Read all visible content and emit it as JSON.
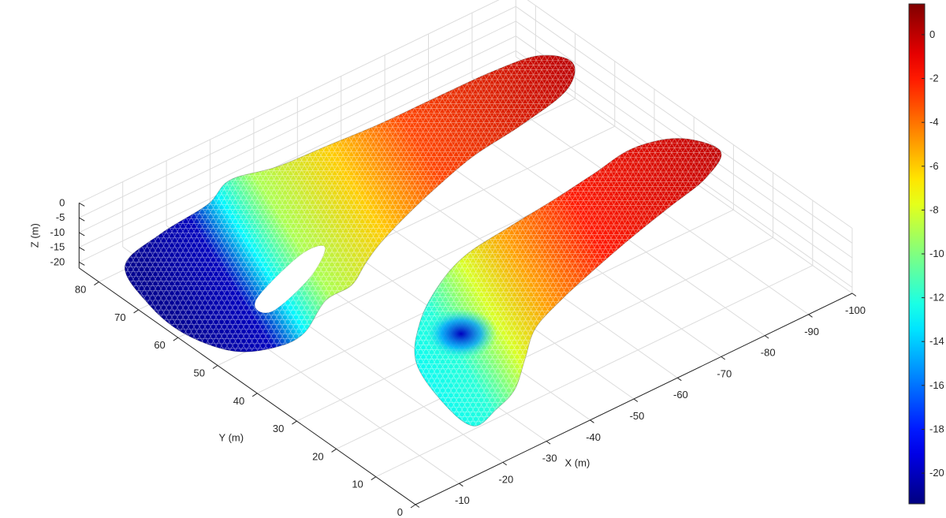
{
  "chart_data": {
    "type": "surface",
    "plot3d": true,
    "colormap": "jet",
    "grid": true,
    "xlabel": "X (m)",
    "ylabel": "Y (m)",
    "zlabel": "Z (m)",
    "xlim": [
      -100,
      0
    ],
    "ylim": [
      0,
      85
    ],
    "zlim": [
      -22,
      0
    ],
    "xticks": [
      {
        "value": 0,
        "label": "0"
      },
      {
        "value": -10,
        "label": "-10"
      },
      {
        "value": -20,
        "label": "-20"
      },
      {
        "value": -30,
        "label": "-30"
      },
      {
        "value": -40,
        "label": "-40"
      },
      {
        "value": -50,
        "label": "-50"
      },
      {
        "value": -60,
        "label": "-60"
      },
      {
        "value": -70,
        "label": "-70"
      },
      {
        "value": -80,
        "label": "-80"
      },
      {
        "value": -90,
        "label": "-90"
      },
      {
        "value": -100,
        "label": "-100"
      }
    ],
    "yticks": [
      {
        "value": 0,
        "label": "0"
      },
      {
        "value": 10,
        "label": "10"
      },
      {
        "value": 20,
        "label": "20"
      },
      {
        "value": 30,
        "label": "30"
      },
      {
        "value": 40,
        "label": "40"
      },
      {
        "value": 50,
        "label": "50"
      },
      {
        "value": 60,
        "label": "60"
      },
      {
        "value": 70,
        "label": "70"
      },
      {
        "value": 80,
        "label": "80"
      }
    ],
    "zticks": [
      {
        "value": 0,
        "label": "0"
      },
      {
        "value": -5,
        "label": "-5"
      },
      {
        "value": -10,
        "label": "-10"
      },
      {
        "value": -15,
        "label": "-15"
      },
      {
        "value": -20,
        "label": "-20"
      }
    ],
    "colorbar": {
      "position": "right",
      "clim": [
        -21.4,
        1.4
      ],
      "ticks": [
        {
          "value": 0,
          "label": "0"
        },
        {
          "value": -2,
          "label": "-2"
        },
        {
          "value": -4,
          "label": "-4"
        },
        {
          "value": -6,
          "label": "-6"
        },
        {
          "value": -8,
          "label": "-8"
        },
        {
          "value": -10,
          "label": "-10"
        },
        {
          "value": -12,
          "label": "-12"
        },
        {
          "value": -14,
          "label": "-14"
        },
        {
          "value": -16,
          "label": "-16"
        },
        {
          "value": -18,
          "label": "-18"
        },
        {
          "value": -20,
          "label": "-20"
        }
      ]
    },
    "meshes": [
      {
        "name": "upper-mesh",
        "wireframe": true,
        "outline": [
          [
            -2,
            70
          ],
          [
            -6,
            80
          ],
          [
            -16,
            82
          ],
          [
            -24,
            79
          ],
          [
            -30,
            80
          ],
          [
            -38,
            77
          ],
          [
            -48,
            75
          ],
          [
            -58,
            73
          ],
          [
            -70,
            72
          ],
          [
            -82,
            71
          ],
          [
            -91,
            69
          ],
          [
            -94,
            64
          ],
          [
            -88,
            59
          ],
          [
            -76,
            57
          ],
          [
            -64,
            56
          ],
          [
            -53,
            54
          ],
          [
            -44,
            52
          ],
          [
            -37,
            50
          ],
          [
            -32,
            48
          ],
          [
            -27,
            46
          ],
          [
            -22,
            47
          ],
          [
            -16,
            46
          ],
          [
            -10,
            47
          ],
          [
            -4,
            51
          ],
          [
            -1,
            60
          ]
        ],
        "depth_profile": [
          {
            "x": -2,
            "z": -21
          },
          {
            "x": -15,
            "z": -20
          },
          {
            "x": -22,
            "z": -13
          },
          {
            "x": -30,
            "z": -9
          },
          {
            "x": -45,
            "z": -6
          },
          {
            "x": -60,
            "z": -3
          },
          {
            "x": -92,
            "z": 0
          }
        ],
        "notch": [
          [
            -16,
            58
          ],
          [
            -26,
            58
          ],
          [
            -30,
            56
          ],
          [
            -24,
            53
          ],
          [
            -16,
            54
          ]
        ]
      },
      {
        "name": "lower-mesh",
        "wireframe": true,
        "outline": [
          [
            -18,
            12
          ],
          [
            -22,
            24
          ],
          [
            -30,
            32
          ],
          [
            -38,
            36
          ],
          [
            -46,
            38
          ],
          [
            -56,
            38
          ],
          [
            -66,
            38
          ],
          [
            -76,
            39
          ],
          [
            -86,
            40
          ],
          [
            -94,
            37
          ],
          [
            -97,
            30
          ],
          [
            -90,
            26
          ],
          [
            -80,
            24
          ],
          [
            -70,
            22
          ],
          [
            -60,
            20
          ],
          [
            -50,
            18
          ],
          [
            -42,
            16
          ],
          [
            -36,
            12
          ],
          [
            -30,
            8
          ],
          [
            -24,
            6
          ],
          [
            -18,
            5
          ]
        ],
        "depth_profile": [
          {
            "x": -18,
            "z": -13
          },
          {
            "x": -30,
            "z": -12
          },
          {
            "x": -40,
            "z": -8
          },
          {
            "x": -50,
            "z": -5
          },
          {
            "x": -65,
            "z": -2
          },
          {
            "x": -96,
            "z": 0
          }
        ],
        "trench": {
          "x": [
            -28,
            -40
          ],
          "y": [
            20,
            32
          ],
          "z": -20
        }
      }
    ]
  }
}
